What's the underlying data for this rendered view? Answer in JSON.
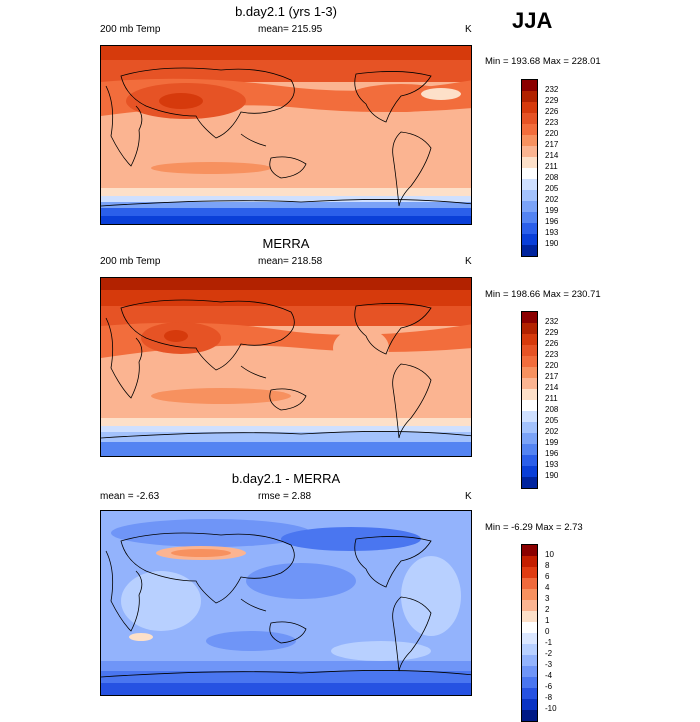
{
  "season": "JJA",
  "units": "K",
  "panels": [
    {
      "title": "b.day2.1 (yrs 1-3)",
      "left_label": "200 mb Temp",
      "center_label": "mean= 215.95",
      "minmax": "Min = 193.68 Max = 228.01",
      "colorbar_labels": [
        "232",
        "229",
        "226",
        "223",
        "220",
        "217",
        "214",
        "211",
        "208",
        "205",
        "202",
        "199",
        "196",
        "193",
        "190"
      ]
    },
    {
      "title": "MERRA",
      "left_label": "200 mb Temp",
      "center_label": "mean= 218.58",
      "minmax": "Min = 198.66 Max = 230.71",
      "colorbar_labels": [
        "232",
        "229",
        "226",
        "223",
        "220",
        "217",
        "214",
        "211",
        "208",
        "205",
        "202",
        "199",
        "196",
        "193",
        "190"
      ]
    },
    {
      "title": "b.day2.1 - MERRA",
      "left_label": "mean =  -2.63",
      "center_label": "rmse =  2.88",
      "minmax": "Min =  -6.29 Max =   2.73",
      "colorbar_labels": [
        "10",
        "8",
        "6",
        "4",
        "3",
        "2",
        "1",
        "0",
        "-1",
        "-2",
        "-3",
        "-4",
        "-6",
        "-8",
        "-10"
      ]
    }
  ],
  "colors": {
    "abs_scale": [
      "#8b0000",
      "#b22200",
      "#d63a0c",
      "#e65325",
      "#f26d3c",
      "#f7915f",
      "#fbb491",
      "#fde0c9",
      "#ffffff",
      "#cfe0ff",
      "#a3c2fc",
      "#7ba3f7",
      "#5484f2",
      "#2b5fea",
      "#0a3fd8",
      "#00249e"
    ],
    "diff_scale": [
      "#8b0000",
      "#c41e00",
      "#e03c12",
      "#f06a3c",
      "#f7915f",
      "#fbb491",
      "#fde0c9",
      "#ffffff",
      "#dbe7ff",
      "#b8d0ff",
      "#93b3fc",
      "#6f95f7",
      "#4a76f0",
      "#2652e2",
      "#0a34c4",
      "#001a85"
    ]
  }
}
